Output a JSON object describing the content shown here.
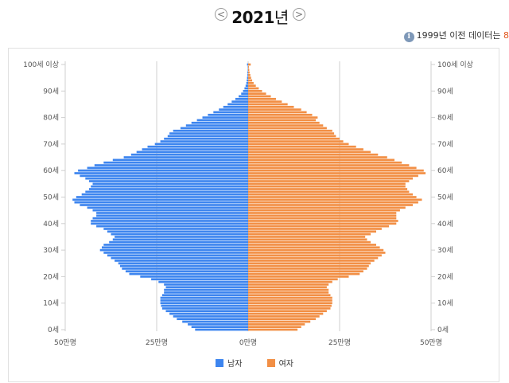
{
  "year_nav": {
    "prev_symbol": "<",
    "next_symbol": ">",
    "year": "2021",
    "year_unit": "년"
  },
  "info": {
    "icon": "info-icon",
    "icon_glyph": "i",
    "text": "1999년 이전 데이터는 ",
    "highlight": "8"
  },
  "colors": {
    "male": "#3d85ef",
    "female": "#f28f45",
    "grid": "#cfcfcf",
    "axis_text": "#555555"
  },
  "chart_data": {
    "type": "bar",
    "orientation": "horizontal",
    "title": "",
    "xlabel": "",
    "ylabel": "",
    "x_unit": "만명",
    "xlim": [
      -50,
      50
    ],
    "x_ticks": [
      -50,
      -25,
      0,
      25,
      50
    ],
    "x_tick_labels": [
      "50만명",
      "25만명",
      "0만명",
      "25만명",
      "50만명"
    ],
    "y_tick_labels": [
      "0세",
      "10세",
      "20세",
      "30세",
      "40세",
      "50세",
      "60세",
      "70세",
      "80세",
      "90세",
      "100세 이상"
    ],
    "y_tick_positions": [
      0,
      10,
      20,
      30,
      40,
      50,
      60,
      70,
      80,
      90,
      100
    ],
    "grid": true,
    "legend_position": "bottom",
    "categories": [
      0,
      1,
      2,
      3,
      4,
      5,
      6,
      7,
      8,
      9,
      10,
      11,
      12,
      13,
      14,
      15,
      16,
      17,
      18,
      19,
      20,
      21,
      22,
      23,
      24,
      25,
      26,
      27,
      28,
      29,
      30,
      31,
      32,
      33,
      34,
      35,
      36,
      37,
      38,
      39,
      40,
      41,
      42,
      43,
      44,
      45,
      46,
      47,
      48,
      49,
      50,
      51,
      52,
      53,
      54,
      55,
      56,
      57,
      58,
      59,
      60,
      61,
      62,
      63,
      64,
      65,
      66,
      67,
      68,
      69,
      70,
      71,
      72,
      73,
      74,
      75,
      76,
      77,
      78,
      79,
      80,
      81,
      82,
      83,
      84,
      85,
      86,
      87,
      88,
      89,
      90,
      91,
      92,
      93,
      94,
      95,
      96,
      97,
      98,
      99,
      100
    ],
    "series": [
      {
        "name": "남자",
        "values": [
          14.5,
          15.5,
          16.5,
          18.0,
          19.5,
          20.5,
          21.5,
          22.5,
          23.5,
          23.8,
          24.0,
          24.0,
          24.0,
          23.5,
          23.0,
          23.0,
          22.5,
          23.0,
          24.5,
          26.5,
          29.5,
          32.5,
          33.5,
          34.5,
          35.0,
          35.5,
          36.5,
          37.5,
          38.5,
          39.5,
          40.5,
          40.0,
          39.5,
          38.0,
          37.0,
          36.5,
          37.5,
          38.5,
          39.5,
          41.5,
          43.0,
          43.0,
          42.5,
          41.5,
          41.5,
          42.5,
          44.0,
          46.0,
          47.5,
          48.0,
          47.0,
          45.5,
          44.5,
          43.5,
          43.0,
          42.5,
          43.5,
          44.5,
          46.0,
          47.5,
          46.5,
          44.0,
          42.0,
          39.5,
          37.0,
          34.0,
          32.0,
          30.5,
          29.0,
          27.5,
          25.5,
          24.0,
          23.0,
          22.0,
          21.5,
          20.5,
          18.5,
          17.0,
          15.5,
          14.0,
          12.5,
          11.0,
          9.5,
          8.0,
          6.8,
          5.6,
          4.5,
          3.5,
          2.6,
          1.9,
          1.4,
          1.0,
          0.7,
          0.5,
          0.4,
          0.3,
          0.2,
          0.2,
          0.1,
          0.1,
          0.3
        ]
      },
      {
        "name": "여자",
        "values": [
          13.5,
          14.5,
          15.5,
          17.0,
          18.5,
          19.5,
          20.5,
          21.5,
          22.5,
          22.8,
          23.0,
          23.0,
          23.0,
          22.5,
          22.0,
          22.0,
          21.5,
          22.0,
          23.0,
          24.5,
          27.5,
          30.5,
          31.5,
          32.5,
          33.0,
          33.5,
          34.5,
          35.5,
          36.5,
          37.5,
          37.0,
          36.0,
          35.0,
          33.5,
          32.5,
          32.0,
          33.5,
          35.0,
          36.5,
          38.5,
          40.5,
          41.0,
          40.5,
          40.5,
          40.5,
          41.5,
          43.0,
          45.0,
          46.5,
          47.5,
          46.0,
          45.0,
          44.0,
          43.5,
          43.0,
          43.0,
          44.0,
          45.0,
          46.5,
          48.5,
          48.0,
          46.0,
          44.0,
          42.0,
          40.0,
          38.0,
          35.5,
          33.5,
          31.5,
          29.5,
          27.5,
          26.0,
          25.0,
          24.0,
          23.5,
          23.0,
          21.5,
          20.5,
          19.5,
          18.5,
          19.0,
          17.5,
          16.0,
          14.5,
          12.5,
          10.8,
          9.2,
          7.6,
          6.2,
          4.9,
          3.8,
          2.9,
          2.1,
          1.5,
          1.1,
          0.8,
          0.6,
          0.4,
          0.3,
          0.2,
          0.7
        ]
      }
    ]
  }
}
